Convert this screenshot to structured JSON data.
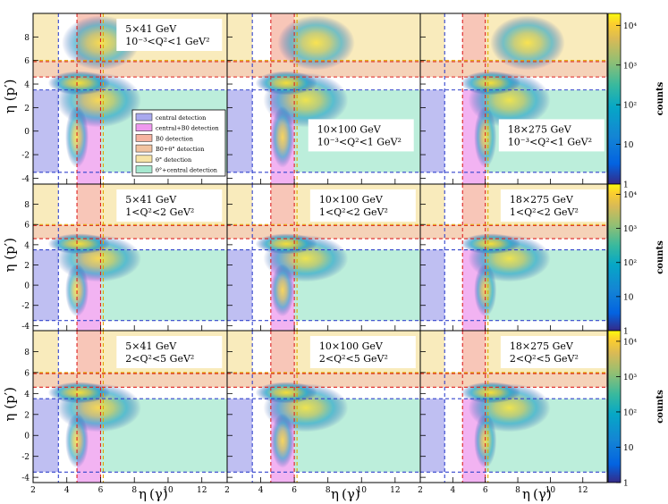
{
  "figure": {
    "y_axis_label_prefix": "η",
    "y_axis_label_particle": "(p′)",
    "x_axis_label_prefix": "η",
    "x_axis_label_particle": "(γ)",
    "colorbar_label": "counts"
  },
  "legend": {
    "entries": [
      {
        "label": "central detection",
        "color": "#a9a9ee"
      },
      {
        "label": "central+B0 detection",
        "color": "#ee99ee"
      },
      {
        "label": "B0 detection",
        "color": "#f6b3a0"
      },
      {
        "label": "B0+θ° detection",
        "color": "#f2c3a0"
      },
      {
        "label": "θ° detection",
        "color": "#f7e4a6"
      },
      {
        "label": "θ°+central detection",
        "color": "#a6e8cf"
      }
    ]
  },
  "chart_data": {
    "type": "heatmap",
    "grid": {
      "rows": 3,
      "cols": 3
    },
    "xlim": [
      2,
      13.5
    ],
    "ylim": [
      -4.5,
      10
    ],
    "xticks": [
      2,
      4,
      6,
      8,
      10,
      12
    ],
    "yticks": [
      -4,
      -2,
      0,
      2,
      4,
      6,
      8
    ],
    "colorbar": {
      "scale": "log",
      "range": [
        1,
        20000
      ],
      "ticks": [
        "1",
        "10",
        "10²",
        "10³",
        "10⁴"
      ],
      "label": "counts"
    },
    "regions": {
      "central_eta_max": 3.5,
      "central_eta_min": -3.5,
      "b0_eta_range": [
        4.6,
        5.9
      ],
      "zdc_eta_min": 6.0
    },
    "panels": [
      {
        "beam": "5×41 GeV",
        "q2": "10⁻³<Q²<1 GeV²",
        "row": 0,
        "col": 0,
        "cut_x": [
          3.5,
          4.6,
          6.0
        ]
      },
      {
        "beam": "10×100 GeV",
        "q2": "10⁻³<Q²<1 GeV²",
        "row": 0,
        "col": 1,
        "cut_x": [
          3.5,
          4.6,
          6.0
        ]
      },
      {
        "beam": "18×275 GeV",
        "q2": "10⁻³<Q²<1 GeV²",
        "row": 0,
        "col": 2,
        "cut_x": [
          3.5,
          4.6,
          6.0
        ]
      },
      {
        "beam": "5×41 GeV",
        "q2": "1<Q²<2 GeV²",
        "row": 1,
        "col": 0,
        "cut_x": [
          3.5,
          4.6,
          6.0
        ]
      },
      {
        "beam": "10×100 GeV",
        "q2": "1<Q²<2 GeV²",
        "row": 1,
        "col": 1,
        "cut_x": [
          3.5,
          4.6,
          6.0
        ]
      },
      {
        "beam": "18×275 GeV",
        "q2": "1<Q²<2 GeV²",
        "row": 1,
        "col": 2,
        "cut_x": [
          3.5,
          4.6,
          6.0
        ]
      },
      {
        "beam": "5×41 GeV",
        "q2": "2<Q²<5 GeV²",
        "row": 2,
        "col": 0,
        "cut_x": [
          3.5,
          4.6,
          6.0
        ]
      },
      {
        "beam": "10×100 GeV",
        "q2": "2<Q²<5 GeV²",
        "row": 2,
        "col": 1,
        "cut_x": [
          3.5,
          4.6,
          6.0
        ]
      },
      {
        "beam": "18×275 GeV",
        "q2": "2<Q²<5 GeV²",
        "row": 2,
        "col": 2,
        "cut_x": [
          3.5,
          4.6,
          6.0
        ]
      }
    ]
  }
}
